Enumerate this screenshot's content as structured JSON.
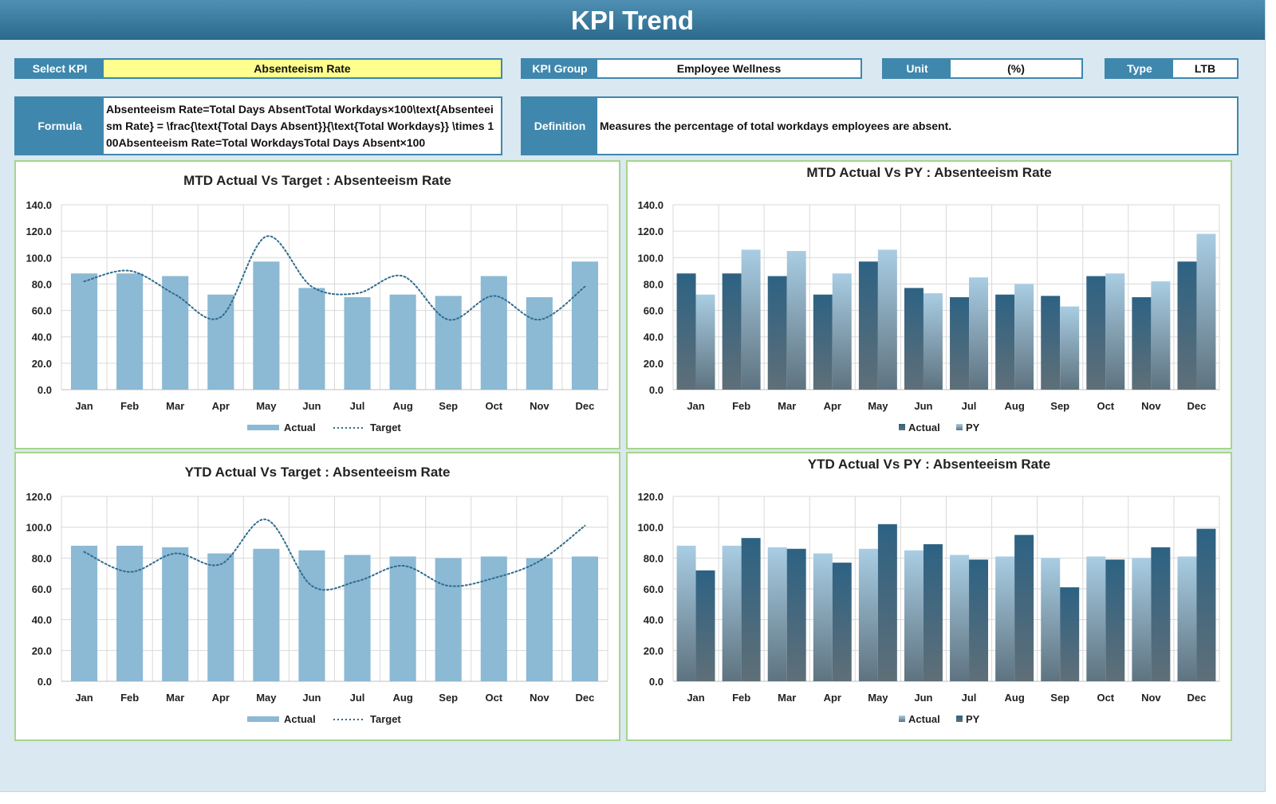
{
  "header": {
    "title": "KPI Trend"
  },
  "fields": {
    "select_kpi": {
      "label": "Select KPI",
      "value": "Absenteeism Rate"
    },
    "kpi_group": {
      "label": "KPI Group",
      "value": "Employee Wellness"
    },
    "unit": {
      "label": "Unit",
      "value": "(%)"
    },
    "type": {
      "label": "Type",
      "value": "LTB"
    },
    "formula": {
      "label": "Formula",
      "value": "Absenteeism Rate=Total Days AbsentTotal Workdays×100\\text{Absenteeism Rate} = \\frac{\\text{Total Days Absent}}{\\text{Total Workdays}} \\times 100Absenteeism Rate=Total WorkdaysTotal Days Absent×100"
    },
    "definition": {
      "label": "Definition",
      "value": "Measures the percentage of total workdays employees are absent."
    }
  },
  "colors": {
    "header": "#2f7196",
    "label_bg": "#3f87ad",
    "select_bg": "#ffff8f",
    "panel_border": "#a6d58a",
    "bar_light": "#8cb9d4",
    "bar_dark": "#2e6384",
    "target_line": "#2e6c8e"
  },
  "chart_data": [
    {
      "id": "mtd-target",
      "type": "bar",
      "title": "MTD Actual Vs Target : Absenteeism Rate",
      "categories": [
        "Jan",
        "Feb",
        "Mar",
        "Apr",
        "May",
        "Jun",
        "Jul",
        "Aug",
        "Sep",
        "Oct",
        "Nov",
        "Dec"
      ],
      "ylim": [
        0,
        140
      ],
      "yticks": [
        "0.0",
        "20.0",
        "40.0",
        "60.0",
        "80.0",
        "100.0",
        "120.0",
        "140.0"
      ],
      "grid": true,
      "legend": "bottom",
      "series": [
        {
          "name": "Actual",
          "kind": "bar",
          "style": "light",
          "values": [
            88,
            88,
            86,
            72,
            97,
            77,
            70,
            72,
            71,
            86,
            70,
            97
          ]
        },
        {
          "name": "Target",
          "kind": "line",
          "style": "dotted",
          "values": [
            82,
            90,
            72,
            55,
            116,
            78,
            73,
            86,
            53,
            71,
            53,
            78
          ]
        }
      ]
    },
    {
      "id": "mtd-py",
      "type": "bar",
      "title": "MTD Actual Vs PY : Absenteeism Rate",
      "categories": [
        "Jan",
        "Feb",
        "Mar",
        "Apr",
        "May",
        "Jun",
        "Jul",
        "Aug",
        "Sep",
        "Oct",
        "Nov",
        "Dec"
      ],
      "ylim": [
        0,
        140
      ],
      "yticks": [
        "0.0",
        "20.0",
        "40.0",
        "60.0",
        "80.0",
        "100.0",
        "120.0",
        "140.0"
      ],
      "grid": true,
      "legend": "bottom",
      "series": [
        {
          "name": "Actual",
          "kind": "bar",
          "style": "dark",
          "values": [
            88,
            88,
            86,
            72,
            97,
            77,
            70,
            72,
            71,
            86,
            70,
            97
          ]
        },
        {
          "name": "PY",
          "kind": "bar",
          "style": "lightgrad",
          "values": [
            72,
            106,
            105,
            88,
            106,
            73,
            85,
            80,
            63,
            88,
            82,
            118
          ]
        }
      ]
    },
    {
      "id": "ytd-target",
      "type": "bar",
      "title": "YTD Actual Vs Target : Absenteeism Rate",
      "categories": [
        "Jan",
        "Feb",
        "Mar",
        "Apr",
        "May",
        "Jun",
        "Jul",
        "Aug",
        "Sep",
        "Oct",
        "Nov",
        "Dec"
      ],
      "ylim": [
        0,
        120
      ],
      "yticks": [
        "0.0",
        "20.0",
        "40.0",
        "60.0",
        "80.0",
        "100.0",
        "120.0"
      ],
      "grid": true,
      "legend": "bottom",
      "series": [
        {
          "name": "Actual",
          "kind": "bar",
          "style": "light",
          "values": [
            88,
            88,
            87,
            83,
            86,
            85,
            82,
            81,
            80,
            81,
            80,
            81
          ]
        },
        {
          "name": "Target",
          "kind": "line",
          "style": "dotted",
          "values": [
            84,
            71,
            83,
            76,
            105,
            62,
            65,
            75,
            62,
            67,
            78,
            101
          ]
        }
      ]
    },
    {
      "id": "ytd-py",
      "type": "bar",
      "title": "YTD Actual Vs PY : Absenteeism Rate",
      "categories": [
        "Jan",
        "Feb",
        "Mar",
        "Apr",
        "May",
        "Jun",
        "Jul",
        "Aug",
        "Sep",
        "Oct",
        "Nov",
        "Dec"
      ],
      "ylim": [
        0,
        120
      ],
      "yticks": [
        "0.0",
        "20.0",
        "40.0",
        "60.0",
        "80.0",
        "100.0",
        "120.0"
      ],
      "grid": true,
      "legend": "bottom",
      "series": [
        {
          "name": "Actual",
          "kind": "bar",
          "style": "lightgrad",
          "values": [
            88,
            88,
            87,
            83,
            86,
            85,
            82,
            81,
            80,
            81,
            80,
            81
          ]
        },
        {
          "name": "PY",
          "kind": "bar",
          "style": "dark",
          "values": [
            72,
            93,
            86,
            77,
            102,
            89,
            79,
            95,
            61,
            79,
            87,
            99
          ]
        }
      ]
    }
  ]
}
